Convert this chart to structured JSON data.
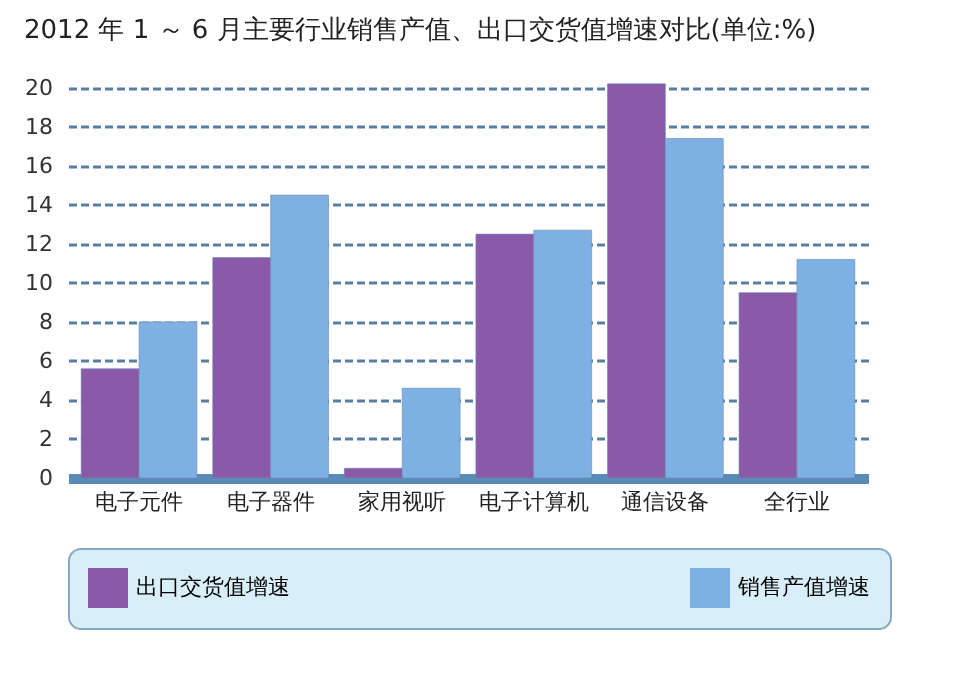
{
  "chart_data": {
    "type": "bar",
    "title": "2012 年 1 ～ 6 月主要行业销售产值、出口交货值增速对比(单位:%)",
    "categories": [
      "电子元件",
      "电子器件",
      "家用视听",
      "电子计算机",
      "通信设备",
      "全行业"
    ],
    "series": [
      {
        "name": "出口交货值增速",
        "color": "#8a5aa8",
        "values": [
          5.6,
          11.3,
          0.5,
          12.5,
          20.2,
          9.5
        ]
      },
      {
        "name": "销售产值增速",
        "color": "#7fb0e4",
        "values": [
          8.0,
          14.5,
          4.6,
          12.7,
          17.4,
          11.2
        ]
      }
    ],
    "ylim": [
      0,
      20.5
    ],
    "yticks": [
      0,
      2,
      4,
      6,
      8,
      10,
      12,
      14,
      16,
      18,
      20
    ],
    "grid": "y",
    "legend": "bottom"
  }
}
